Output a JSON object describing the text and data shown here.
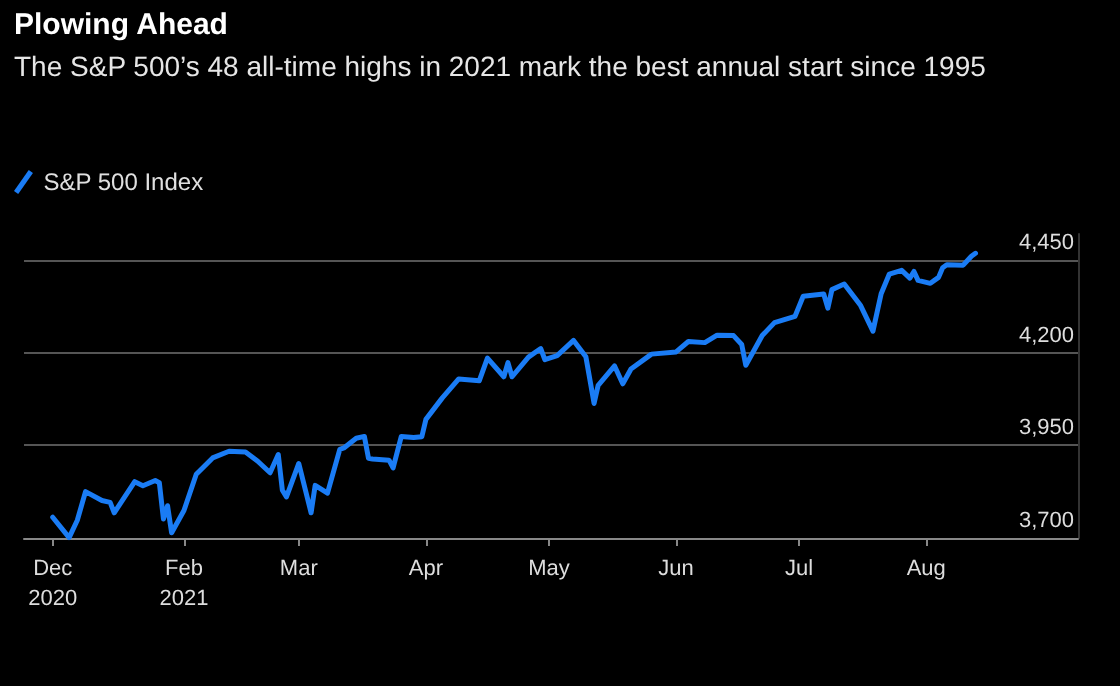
{
  "chart_data": {
    "type": "line",
    "title": "Plowing Ahead",
    "subtitle": "The S&P 500’s 48 all-time highs in 2021 mark the best annual start since 1995",
    "x": [
      "2020-12-31",
      "2021-01-04",
      "2021-01-06",
      "2021-01-08",
      "2021-01-12",
      "2021-01-14",
      "2021-01-15",
      "2021-01-20",
      "2021-01-22",
      "2021-01-25",
      "2021-01-26",
      "2021-01-27",
      "2021-01-28",
      "2021-01-29",
      "2021-02-01",
      "2021-02-04",
      "2021-02-08",
      "2021-02-12",
      "2021-02-16",
      "2021-02-19",
      "2021-02-22",
      "2021-02-24",
      "2021-02-25",
      "2021-02-26",
      "2021-03-01",
      "2021-03-04",
      "2021-03-05",
      "2021-03-08",
      "2021-03-11",
      "2021-03-12",
      "2021-03-15",
      "2021-03-17",
      "2021-03-18",
      "2021-03-19",
      "2021-03-23",
      "2021-03-24",
      "2021-03-26",
      "2021-03-29",
      "2021-03-31",
      "2021-04-01",
      "2021-04-05",
      "2021-04-09",
      "2021-04-14",
      "2021-04-16",
      "2021-04-20",
      "2021-04-21",
      "2021-04-22",
      "2021-04-26",
      "2021-04-29",
      "2021-04-30",
      "2021-05-03",
      "2021-05-07",
      "2021-05-10",
      "2021-05-12",
      "2021-05-13",
      "2021-05-17",
      "2021-05-19",
      "2021-05-21",
      "2021-05-26",
      "2021-06-01",
      "2021-06-04",
      "2021-06-08",
      "2021-06-11",
      "2021-06-15",
      "2021-06-17",
      "2021-06-18",
      "2021-06-22",
      "2021-06-25",
      "2021-06-30",
      "2021-07-02",
      "2021-07-07",
      "2021-07-08",
      "2021-07-09",
      "2021-07-12",
      "2021-07-16",
      "2021-07-19",
      "2021-07-21",
      "2021-07-23",
      "2021-07-26",
      "2021-07-28",
      "2021-07-29",
      "2021-07-30",
      "2021-08-02",
      "2021-08-04",
      "2021-08-05",
      "2021-08-06",
      "2021-08-10",
      "2021-08-12",
      "2021-08-13"
    ],
    "series": [
      {
        "name": "S&P 500 Index",
        "color": "#1a7cf5",
        "values": [
          3756,
          3701,
          3748,
          3825,
          3801,
          3796,
          3768,
          3852,
          3841,
          3855,
          3849,
          3751,
          3787,
          3714,
          3774,
          3872,
          3916,
          3934,
          3932,
          3907,
          3876,
          3925,
          3829,
          3811,
          3901,
          3768,
          3842,
          3821,
          3939,
          3943,
          3969,
          3974,
          3915,
          3913,
          3910,
          3889,
          3974,
          3971,
          3973,
          4020,
          4078,
          4129,
          4124,
          4185,
          4135,
          4173,
          4135,
          4188,
          4211,
          4181,
          4192,
          4233,
          4189,
          4063,
          4112,
          4164,
          4116,
          4156,
          4196,
          4202,
          4230,
          4227,
          4247,
          4246,
          4222,
          4166,
          4246,
          4281,
          4298,
          4352,
          4358,
          4320,
          4370,
          4385,
          4327,
          4258,
          4359,
          4412,
          4422,
          4401,
          4419,
          4395,
          4387,
          4403,
          4429,
          4437,
          4436,
          4460,
          4468
        ]
      }
    ],
    "xlim": [
      "2020-12-24",
      "2021-09-07"
    ],
    "xticks": [
      {
        "value": "2020-12-31",
        "label": "Dec\n2020"
      },
      {
        "value": "2021-02-01",
        "label": "Feb\n2021"
      },
      {
        "value": "2021-03-01",
        "label": "Mar"
      },
      {
        "value": "2021-04-01",
        "label": "Apr"
      },
      {
        "value": "2021-05-01",
        "label": "May"
      },
      {
        "value": "2021-06-01",
        "label": "Jun"
      },
      {
        "value": "2021-07-01",
        "label": "Jul"
      },
      {
        "value": "2021-08-01",
        "label": "Aug"
      }
    ],
    "ylim": [
      3700,
      4520
    ],
    "yticks": [
      {
        "value": 3700,
        "label": "3,700"
      },
      {
        "value": 3950,
        "label": "3,950"
      },
      {
        "value": 4200,
        "label": "4,200"
      },
      {
        "value": 4450,
        "label": "4,450"
      }
    ],
    "grid": "y",
    "legend": "top left",
    "marker": "none",
    "line_style": "solid"
  }
}
